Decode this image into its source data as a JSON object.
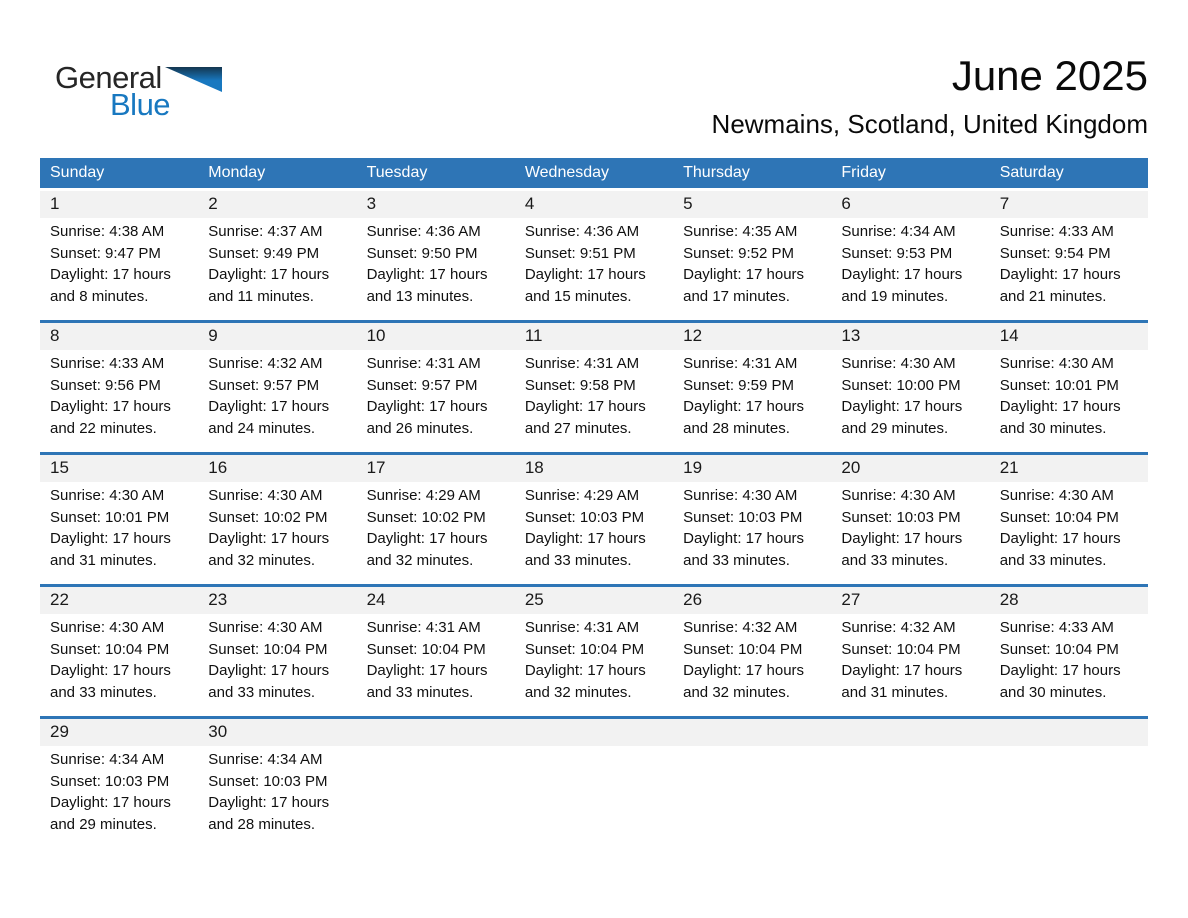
{
  "logo": {
    "general": "General",
    "blue": "Blue"
  },
  "header": {
    "title": "June 2025",
    "location": "Newmains, Scotland, United Kingdom"
  },
  "colors": {
    "accent_blue": "#2E75B6",
    "logo_blue": "#1878C0",
    "day_number_strip_bg": "#F2F2F2",
    "header_text": "#FFFFFF"
  },
  "weekdays": [
    "Sunday",
    "Monday",
    "Tuesday",
    "Wednesday",
    "Thursday",
    "Friday",
    "Saturday"
  ],
  "weeks": [
    {
      "days": [
        {
          "day": "1",
          "sunrise": "Sunrise: 4:38 AM",
          "sunset": "Sunset: 9:47 PM",
          "daylight1": "Daylight: 17 hours",
          "daylight2": "and 8 minutes."
        },
        {
          "day": "2",
          "sunrise": "Sunrise: 4:37 AM",
          "sunset": "Sunset: 9:49 PM",
          "daylight1": "Daylight: 17 hours",
          "daylight2": "and 11 minutes."
        },
        {
          "day": "3",
          "sunrise": "Sunrise: 4:36 AM",
          "sunset": "Sunset: 9:50 PM",
          "daylight1": "Daylight: 17 hours",
          "daylight2": "and 13 minutes."
        },
        {
          "day": "4",
          "sunrise": "Sunrise: 4:36 AM",
          "sunset": "Sunset: 9:51 PM",
          "daylight1": "Daylight: 17 hours",
          "daylight2": "and 15 minutes."
        },
        {
          "day": "5",
          "sunrise": "Sunrise: 4:35 AM",
          "sunset": "Sunset: 9:52 PM",
          "daylight1": "Daylight: 17 hours",
          "daylight2": "and 17 minutes."
        },
        {
          "day": "6",
          "sunrise": "Sunrise: 4:34 AM",
          "sunset": "Sunset: 9:53 PM",
          "daylight1": "Daylight: 17 hours",
          "daylight2": "and 19 minutes."
        },
        {
          "day": "7",
          "sunrise": "Sunrise: 4:33 AM",
          "sunset": "Sunset: 9:54 PM",
          "daylight1": "Daylight: 17 hours",
          "daylight2": "and 21 minutes."
        }
      ]
    },
    {
      "days": [
        {
          "day": "8",
          "sunrise": "Sunrise: 4:33 AM",
          "sunset": "Sunset: 9:56 PM",
          "daylight1": "Daylight: 17 hours",
          "daylight2": "and 22 minutes."
        },
        {
          "day": "9",
          "sunrise": "Sunrise: 4:32 AM",
          "sunset": "Sunset: 9:57 PM",
          "daylight1": "Daylight: 17 hours",
          "daylight2": "and 24 minutes."
        },
        {
          "day": "10",
          "sunrise": "Sunrise: 4:31 AM",
          "sunset": "Sunset: 9:57 PM",
          "daylight1": "Daylight: 17 hours",
          "daylight2": "and 26 minutes."
        },
        {
          "day": "11",
          "sunrise": "Sunrise: 4:31 AM",
          "sunset": "Sunset: 9:58 PM",
          "daylight1": "Daylight: 17 hours",
          "daylight2": "and 27 minutes."
        },
        {
          "day": "12",
          "sunrise": "Sunrise: 4:31 AM",
          "sunset": "Sunset: 9:59 PM",
          "daylight1": "Daylight: 17 hours",
          "daylight2": "and 28 minutes."
        },
        {
          "day": "13",
          "sunrise": "Sunrise: 4:30 AM",
          "sunset": "Sunset: 10:00 PM",
          "daylight1": "Daylight: 17 hours",
          "daylight2": "and 29 minutes."
        },
        {
          "day": "14",
          "sunrise": "Sunrise: 4:30 AM",
          "sunset": "Sunset: 10:01 PM",
          "daylight1": "Daylight: 17 hours",
          "daylight2": "and 30 minutes."
        }
      ]
    },
    {
      "days": [
        {
          "day": "15",
          "sunrise": "Sunrise: 4:30 AM",
          "sunset": "Sunset: 10:01 PM",
          "daylight1": "Daylight: 17 hours",
          "daylight2": "and 31 minutes."
        },
        {
          "day": "16",
          "sunrise": "Sunrise: 4:30 AM",
          "sunset": "Sunset: 10:02 PM",
          "daylight1": "Daylight: 17 hours",
          "daylight2": "and 32 minutes."
        },
        {
          "day": "17",
          "sunrise": "Sunrise: 4:29 AM",
          "sunset": "Sunset: 10:02 PM",
          "daylight1": "Daylight: 17 hours",
          "daylight2": "and 32 minutes."
        },
        {
          "day": "18",
          "sunrise": "Sunrise: 4:29 AM",
          "sunset": "Sunset: 10:03 PM",
          "daylight1": "Daylight: 17 hours",
          "daylight2": "and 33 minutes."
        },
        {
          "day": "19",
          "sunrise": "Sunrise: 4:30 AM",
          "sunset": "Sunset: 10:03 PM",
          "daylight1": "Daylight: 17 hours",
          "daylight2": "and 33 minutes."
        },
        {
          "day": "20",
          "sunrise": "Sunrise: 4:30 AM",
          "sunset": "Sunset: 10:03 PM",
          "daylight1": "Daylight: 17 hours",
          "daylight2": "and 33 minutes."
        },
        {
          "day": "21",
          "sunrise": "Sunrise: 4:30 AM",
          "sunset": "Sunset: 10:04 PM",
          "daylight1": "Daylight: 17 hours",
          "daylight2": "and 33 minutes."
        }
      ]
    },
    {
      "days": [
        {
          "day": "22",
          "sunrise": "Sunrise: 4:30 AM",
          "sunset": "Sunset: 10:04 PM",
          "daylight1": "Daylight: 17 hours",
          "daylight2": "and 33 minutes."
        },
        {
          "day": "23",
          "sunrise": "Sunrise: 4:30 AM",
          "sunset": "Sunset: 10:04 PM",
          "daylight1": "Daylight: 17 hours",
          "daylight2": "and 33 minutes."
        },
        {
          "day": "24",
          "sunrise": "Sunrise: 4:31 AM",
          "sunset": "Sunset: 10:04 PM",
          "daylight1": "Daylight: 17 hours",
          "daylight2": "and 33 minutes."
        },
        {
          "day": "25",
          "sunrise": "Sunrise: 4:31 AM",
          "sunset": "Sunset: 10:04 PM",
          "daylight1": "Daylight: 17 hours",
          "daylight2": "and 32 minutes."
        },
        {
          "day": "26",
          "sunrise": "Sunrise: 4:32 AM",
          "sunset": "Sunset: 10:04 PM",
          "daylight1": "Daylight: 17 hours",
          "daylight2": "and 32 minutes."
        },
        {
          "day": "27",
          "sunrise": "Sunrise: 4:32 AM",
          "sunset": "Sunset: 10:04 PM",
          "daylight1": "Daylight: 17 hours",
          "daylight2": "and 31 minutes."
        },
        {
          "day": "28",
          "sunrise": "Sunrise: 4:33 AM",
          "sunset": "Sunset: 10:04 PM",
          "daylight1": "Daylight: 17 hours",
          "daylight2": "and 30 minutes."
        }
      ]
    },
    {
      "days": [
        {
          "day": "29",
          "sunrise": "Sunrise: 4:34 AM",
          "sunset": "Sunset: 10:03 PM",
          "daylight1": "Daylight: 17 hours",
          "daylight2": "and 29 minutes."
        },
        {
          "day": "30",
          "sunrise": "Sunrise: 4:34 AM",
          "sunset": "Sunset: 10:03 PM",
          "daylight1": "Daylight: 17 hours",
          "daylight2": "and 28 minutes."
        },
        null,
        null,
        null,
        null,
        null
      ]
    }
  ]
}
